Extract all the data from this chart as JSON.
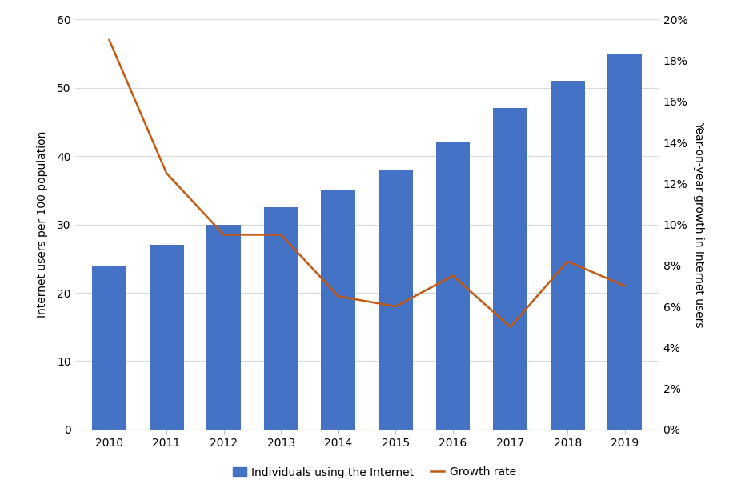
{
  "years": [
    2010,
    2011,
    2012,
    2013,
    2014,
    2015,
    2016,
    2017,
    2018,
    2019
  ],
  "bar_values": [
    24.0,
    27.0,
    30.0,
    32.5,
    35.0,
    38.0,
    42.0,
    47.0,
    51.0,
    55.0
  ],
  "growth_rate": [
    0.19,
    0.125,
    0.095,
    0.095,
    0.065,
    0.06,
    0.075,
    0.05,
    0.082,
    0.07
  ],
  "bar_color": "#4472C4",
  "line_color": "#C65911",
  "left_ylim": [
    0,
    60
  ],
  "left_yticks": [
    0,
    10,
    20,
    30,
    40,
    50,
    60
  ],
  "right_ylim": [
    0,
    0.2
  ],
  "right_yticks": [
    0,
    0.02,
    0.04,
    0.06,
    0.08,
    0.1,
    0.12,
    0.14,
    0.16,
    0.18,
    0.2
  ],
  "left_ylabel": "Internet users per 100 population",
  "right_ylabel": "Year-on-year growth in Internet users",
  "legend_bar": "Individuals using the Internet",
  "legend_line": "Growth rate",
  "background_color": "#ffffff",
  "grid_color": "#d9d9d9",
  "label_fontsize": 10,
  "tick_fontsize": 10,
  "legend_fontsize": 10
}
